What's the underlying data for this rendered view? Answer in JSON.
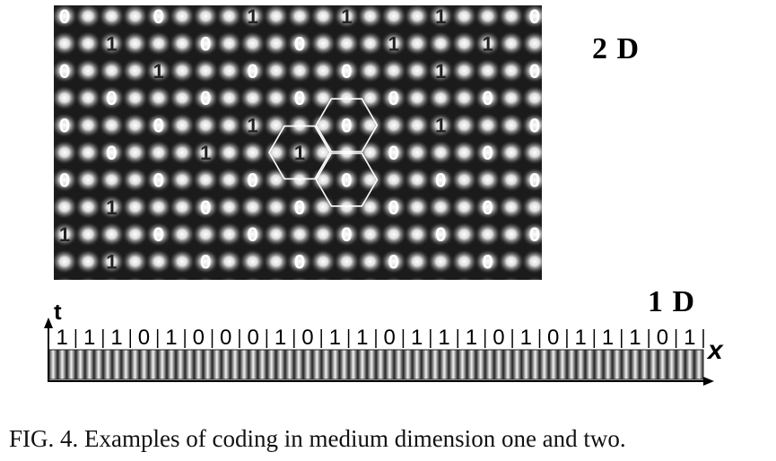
{
  "figure": {
    "label_2d": "2 D",
    "label_1d": "1 D",
    "axis_t": "t",
    "axis_x": "x",
    "caption": "FIG. 4. Examples of coding in medium dimension one and two."
  },
  "grid_2d": {
    "rows": [
      [
        "0",
        "",
        "",
        "",
        "0",
        "",
        "",
        "",
        "1",
        "",
        "",
        "",
        "1",
        "",
        "",
        "",
        "1",
        "",
        "",
        "",
        "0"
      ],
      [
        "",
        "",
        "1",
        "",
        "",
        "",
        "0",
        "",
        "",
        "",
        "0",
        "",
        "",
        "",
        "1",
        "",
        "",
        "",
        "1",
        "",
        ""
      ],
      [
        "0",
        "",
        "",
        "",
        "1",
        "",
        "",
        "",
        "0",
        "",
        "",
        "",
        "0",
        "",
        "",
        "",
        "1",
        "",
        "",
        "",
        "0"
      ],
      [
        "",
        "",
        "0",
        "",
        "",
        "",
        "0",
        "",
        "",
        "",
        "0",
        "",
        "",
        "",
        "0",
        "",
        "",
        "",
        "0",
        "",
        ""
      ],
      [
        "0",
        "",
        "",
        "",
        "0",
        "",
        "",
        "",
        "1",
        "",
        "",
        "",
        "0",
        "",
        "",
        "",
        "1",
        "",
        "",
        "",
        "0"
      ],
      [
        "",
        "",
        "0",
        "",
        "",
        "",
        "1",
        "",
        "",
        "",
        "1",
        "",
        "",
        "",
        "0",
        "",
        "",
        "",
        "0",
        "",
        ""
      ],
      [
        "0",
        "",
        "",
        "",
        "0",
        "",
        "",
        "",
        "0",
        "",
        "",
        "",
        "0",
        "",
        "",
        "",
        "0",
        "",
        "",
        "",
        "0"
      ],
      [
        "",
        "",
        "1",
        "",
        "",
        "",
        "0",
        "",
        "",
        "",
        "0",
        "",
        "",
        "",
        "0",
        "",
        "",
        "",
        "0",
        "",
        ""
      ],
      [
        "1",
        "",
        "",
        "",
        "0",
        "",
        "",
        "",
        "0",
        "",
        "",
        "",
        "0",
        "",
        "",
        "",
        "0",
        "",
        "",
        "",
        "0"
      ],
      [
        "",
        "",
        "1",
        "",
        "",
        "",
        "0",
        "",
        "",
        "",
        "0",
        "",
        "",
        "",
        "0",
        "",
        "",
        "",
        "0",
        "",
        ""
      ]
    ],
    "dark_digit_value": "1",
    "light_digit_value": "0"
  },
  "sequence_1d": [
    "1",
    "1",
    "1",
    "0",
    "1",
    "0",
    "0",
    "0",
    "1",
    "0",
    "1",
    "1",
    "0",
    "1",
    "1",
    "1",
    "0",
    "1",
    "0",
    "1",
    "1",
    "1",
    "0",
    "1"
  ],
  "colors": {
    "background": "#1b1b1b",
    "spot": "#ffffff",
    "hex_outline": "#ffffff",
    "digit_zero": "#ffffff",
    "digit_one": "#222222"
  }
}
